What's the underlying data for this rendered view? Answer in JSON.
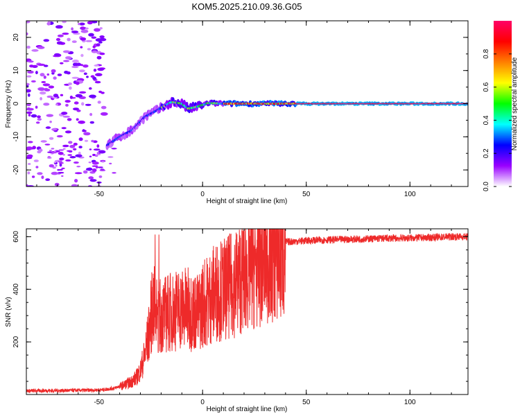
{
  "title": "KOM5.2025.210.09.36.G05",
  "chart_data": [
    {
      "type": "heatmap",
      "xlabel": "Height of straight line (km)",
      "ylabel": "Frequency (Hz)",
      "xlim": [
        -85,
        128
      ],
      "ylim": [
        -25,
        25
      ],
      "xticks": [
        -50,
        0,
        50,
        100
      ],
      "yticks": [
        -20,
        -10,
        0,
        10,
        20
      ],
      "colorbar": {
        "label": "Normalized spectral amplitude",
        "range": [
          0,
          1
        ],
        "ticks": [
          0.0,
          0.2,
          0.4,
          0.6,
          0.8
        ],
        "colors": [
          "#ffffff",
          "#9900ff",
          "#0000ff",
          "#00ffff",
          "#00ff00",
          "#ffff00",
          "#ff8000",
          "#ff0000",
          "#ff0066"
        ]
      },
      "ridge": [
        {
          "x": -46,
          "f": -12.5
        },
        {
          "x": -40,
          "f": -10
        },
        {
          "x": -34,
          "f": -8
        },
        {
          "x": -28,
          "f": -4
        },
        {
          "x": -22,
          "f": -2
        },
        {
          "x": -15,
          "f": 0.5
        },
        {
          "x": -10,
          "f": 0
        },
        {
          "x": -7,
          "f": -1.5
        },
        {
          "x": -3,
          "f": -1
        },
        {
          "x": 3,
          "f": 0.2
        },
        {
          "x": 10,
          "f": 0
        },
        {
          "x": 20,
          "f": 0
        },
        {
          "x": 35,
          "f": 0
        },
        {
          "x": 60,
          "f": 0
        },
        {
          "x": 128,
          "f": 0
        }
      ]
    },
    {
      "type": "line",
      "xlabel": "Height of straight line (km)",
      "ylabel": "SNR (v/v)",
      "xlim": [
        -85,
        128
      ],
      "ylim": [
        0,
        630
      ],
      "xticks": [
        -50,
        0,
        50,
        100
      ],
      "yticks": [
        200,
        400,
        600
      ],
      "color": "#ee2a2a",
      "series": [
        {
          "x": [
            -85,
            -70,
            -55,
            -48,
            -42,
            -38,
            -35,
            -32,
            -30,
            -28,
            -26,
            -24,
            -22,
            -20,
            -17,
            -14,
            -11,
            -8,
            -5,
            -2,
            0,
            3,
            6,
            10,
            13,
            16,
            20,
            25,
            30,
            35,
            40,
            50,
            60,
            70,
            80,
            90,
            100,
            110,
            120,
            128
          ],
          "y": [
            14,
            15,
            16,
            18,
            25,
            40,
            50,
            70,
            100,
            160,
            250,
            380,
            320,
            330,
            340,
            350,
            360,
            360,
            350,
            340,
            380,
            400,
            430,
            440,
            450,
            470,
            500,
            530,
            560,
            575,
            580,
            585,
            588,
            590,
            592,
            594,
            595,
            597,
            600,
            600
          ]
        }
      ]
    }
  ]
}
